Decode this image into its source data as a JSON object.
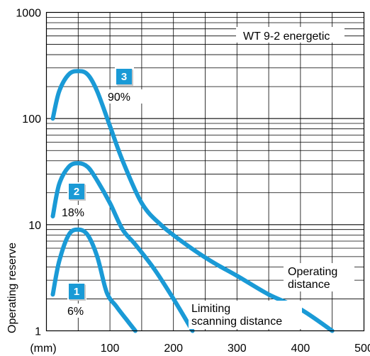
{
  "chart_data": {
    "type": "line",
    "title": "WT 9-2 energetic",
    "ylabel": "Operating reserve",
    "xunit": "(mm)",
    "xlim": [
      0,
      500
    ],
    "ylim": [
      1,
      1000
    ],
    "yscale": "log",
    "grid": true,
    "x_ticks": [
      100,
      200,
      300,
      400,
      500
    ],
    "y_ticks": [
      1,
      10,
      100,
      1000
    ],
    "line_color": "#1a9ad6",
    "series": [
      {
        "badge": "1",
        "percent": "6%",
        "points": [
          [
            10,
            2.2
          ],
          [
            20,
            4.5
          ],
          [
            35,
            8
          ],
          [
            50,
            9
          ],
          [
            65,
            8
          ],
          [
            80,
            5
          ],
          [
            95,
            2.3
          ],
          [
            110,
            1.7
          ],
          [
            125,
            1.3
          ],
          [
            140,
            1.0
          ]
        ]
      },
      {
        "badge": "2",
        "percent": "18%",
        "points": [
          [
            10,
            12
          ],
          [
            20,
            24
          ],
          [
            35,
            35
          ],
          [
            50,
            38
          ],
          [
            65,
            35
          ],
          [
            80,
            26
          ],
          [
            100,
            16
          ],
          [
            120,
            9
          ],
          [
            140,
            6.5
          ],
          [
            170,
            3.8
          ],
          [
            200,
            2.0
          ],
          [
            230,
            1.0
          ]
        ]
      },
      {
        "badge": "3",
        "percent": "90%",
        "points": [
          [
            10,
            100
          ],
          [
            20,
            180
          ],
          [
            35,
            260
          ],
          [
            50,
            280
          ],
          [
            65,
            260
          ],
          [
            80,
            180
          ],
          [
            100,
            85
          ],
          [
            120,
            40
          ],
          [
            150,
            16
          ],
          [
            180,
            10
          ],
          [
            220,
            6.5
          ],
          [
            260,
            4.5
          ],
          [
            300,
            3.3
          ],
          [
            350,
            2.2
          ],
          [
            400,
            1.6
          ],
          [
            450,
            1.0
          ]
        ]
      }
    ],
    "annotations": {
      "operating_line1": "Operating",
      "operating_line2": "distance",
      "limiting_line1": "Limiting",
      "limiting_line2": "scanning distance"
    }
  }
}
